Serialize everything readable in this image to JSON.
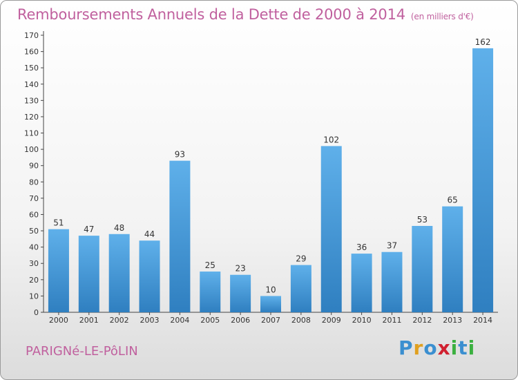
{
  "page": {
    "title": "Remboursements Annuels de la Dette de 2000 à 2014",
    "unit": "(en milliers d'€)",
    "town": "PARIGNé-LE-PôLIN",
    "logo_letters": [
      {
        "ch": "P",
        "color": "#3b8fd0"
      },
      {
        "ch": "r",
        "color": "#e0a020"
      },
      {
        "ch": "o",
        "color": "#3b8fd0"
      },
      {
        "ch": "x",
        "color": "#d02030"
      },
      {
        "ch": "i",
        "color": "#3bb040"
      },
      {
        "ch": "t",
        "color": "#3b8fd0"
      },
      {
        "ch": "i",
        "color": "#3bb040"
      }
    ]
  },
  "chart_data": {
    "type": "bar",
    "categories": [
      "2000",
      "2001",
      "2002",
      "2003",
      "2004",
      "2005",
      "2006",
      "2007",
      "2008",
      "2009",
      "2010",
      "2011",
      "2012",
      "2013",
      "2014"
    ],
    "values": [
      51,
      47,
      48,
      44,
      93,
      25,
      23,
      10,
      29,
      102,
      36,
      37,
      53,
      65,
      162
    ],
    "ylim": [
      0,
      170
    ],
    "yticks": [
      0,
      10,
      20,
      30,
      40,
      50,
      60,
      70,
      80,
      90,
      100,
      110,
      120,
      130,
      140,
      150,
      160,
      170
    ],
    "grid": false,
    "bar_color_top": "#5fb0ea",
    "bar_color_bottom": "#2f7fc0",
    "label_color": "#333333"
  }
}
